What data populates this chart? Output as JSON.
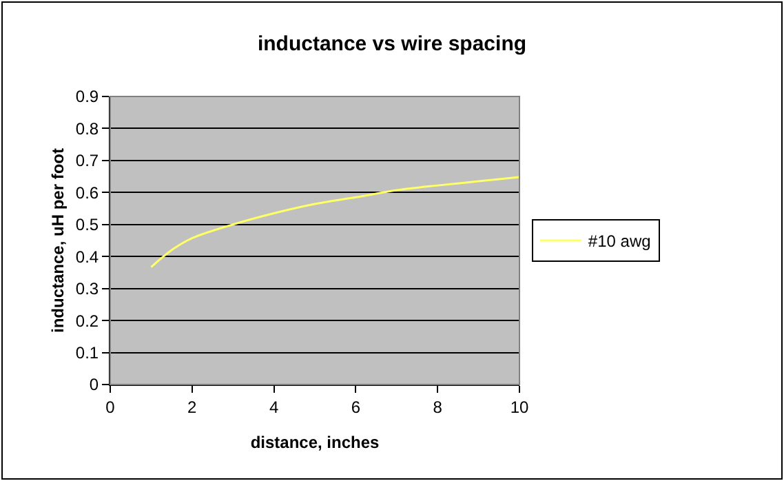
{
  "chart_data": {
    "type": "line",
    "title": "inductance vs wire spacing",
    "xlabel": "distance, inches",
    "ylabel": "inductance, uH per foot",
    "x": [
      1,
      1.5,
      2,
      3,
      4,
      5,
      6,
      7,
      8,
      9,
      10
    ],
    "series": [
      {
        "name": "#10 awg",
        "color": "#ffff66",
        "values": [
          0.367,
          0.42,
          0.457,
          0.5,
          0.535,
          0.564,
          0.585,
          0.607,
          0.622,
          0.635,
          0.648
        ]
      }
    ],
    "xlim": [
      0,
      10
    ],
    "xticks": [
      0,
      2,
      4,
      6,
      8,
      10
    ],
    "ylim": [
      0,
      0.9
    ],
    "yticks": [
      0,
      0.1,
      0.2,
      0.3,
      0.4,
      0.5,
      0.6,
      0.7,
      0.8,
      0.9
    ],
    "grid": "y",
    "legend": "right",
    "marker": "none",
    "line_style": "solid"
  }
}
